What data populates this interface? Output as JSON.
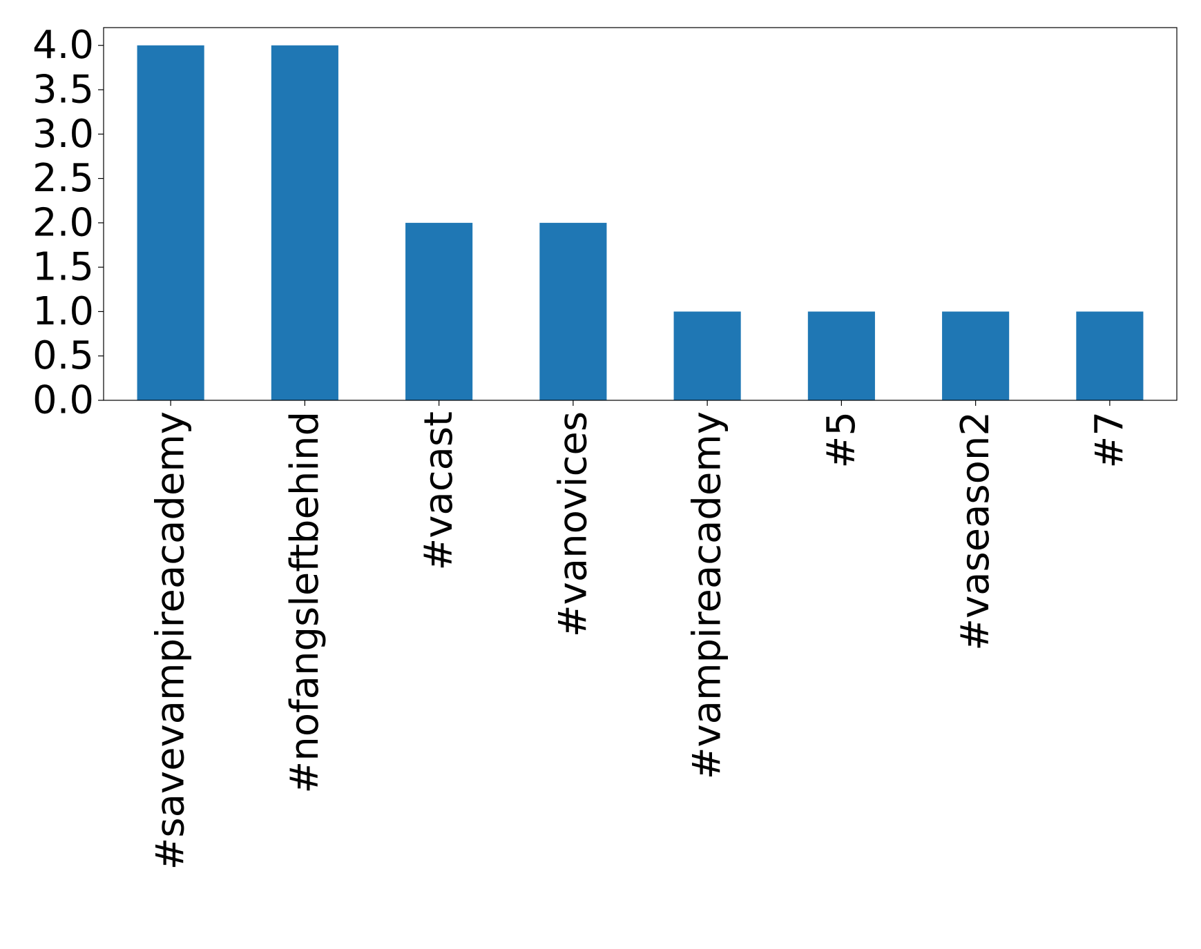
{
  "chart_data": {
    "type": "bar",
    "title": "",
    "xlabel": "",
    "ylabel": "",
    "categories": [
      "#savevampireacademy",
      "#nofangsleftbehind",
      "#vacast",
      "#vanovices",
      "#vampireacademy",
      "#5",
      "#vaseason2",
      "#7"
    ],
    "values": [
      4,
      4,
      2,
      2,
      1,
      1,
      1,
      1
    ],
    "ylim": [
      0,
      4.2
    ],
    "yticks": [
      0.0,
      0.5,
      1.0,
      1.5,
      2.0,
      2.5,
      3.0,
      3.5,
      4.0
    ],
    "ytick_labels": [
      "0.0",
      "0.5",
      "1.0",
      "1.5",
      "2.0",
      "2.5",
      "3.0",
      "3.5",
      "4.0"
    ],
    "grid": false,
    "legend": "none",
    "bar_color": "#1f77b4"
  }
}
